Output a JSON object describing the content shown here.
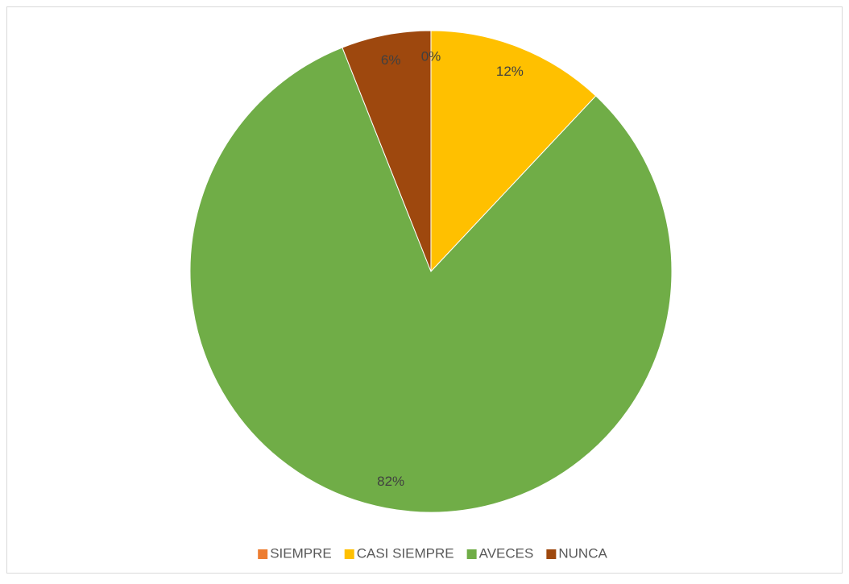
{
  "chart_data": {
    "type": "pie",
    "categories": [
      "SIEMPRE",
      "CASI SIEMPRE",
      "AVECES",
      "NUNCA"
    ],
    "values": [
      0,
      12,
      82,
      6
    ],
    "value_labels": [
      "0%",
      "12%",
      "82%",
      "6%"
    ],
    "colors": [
      "#ed7d31",
      "#ffc000",
      "#70ad47",
      "#9e480e"
    ],
    "legend": "bottom"
  }
}
